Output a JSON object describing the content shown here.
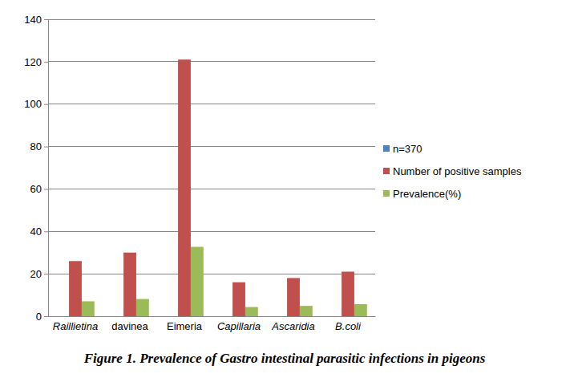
{
  "chart_data": {
    "type": "bar",
    "title": "Figure 1. Prevalence of Gastro intestinal parasitic infections in pigeons",
    "categories": [
      "Raillietina",
      "davinea",
      "Eimeria",
      "Capillaria",
      "Ascaridia",
      "B.coli"
    ],
    "series": [
      {
        "name": "n=370",
        "color": "#4f81bd",
        "values": [
          null,
          null,
          null,
          null,
          null,
          null
        ]
      },
      {
        "name": "Number of positive samples",
        "color": "#c0504d",
        "values": [
          26,
          30,
          121,
          16,
          18,
          21
        ]
      },
      {
        "name": "Prevalence(%)",
        "color": "#9bbb59",
        "values": [
          7.03,
          8.11,
          32.7,
          4.32,
          4.86,
          5.68
        ]
      }
    ],
    "ylim": [
      0,
      140
    ],
    "yticks": [
      0,
      20,
      40,
      60,
      80,
      100,
      120,
      140
    ],
    "grid": true,
    "legend": "right"
  }
}
